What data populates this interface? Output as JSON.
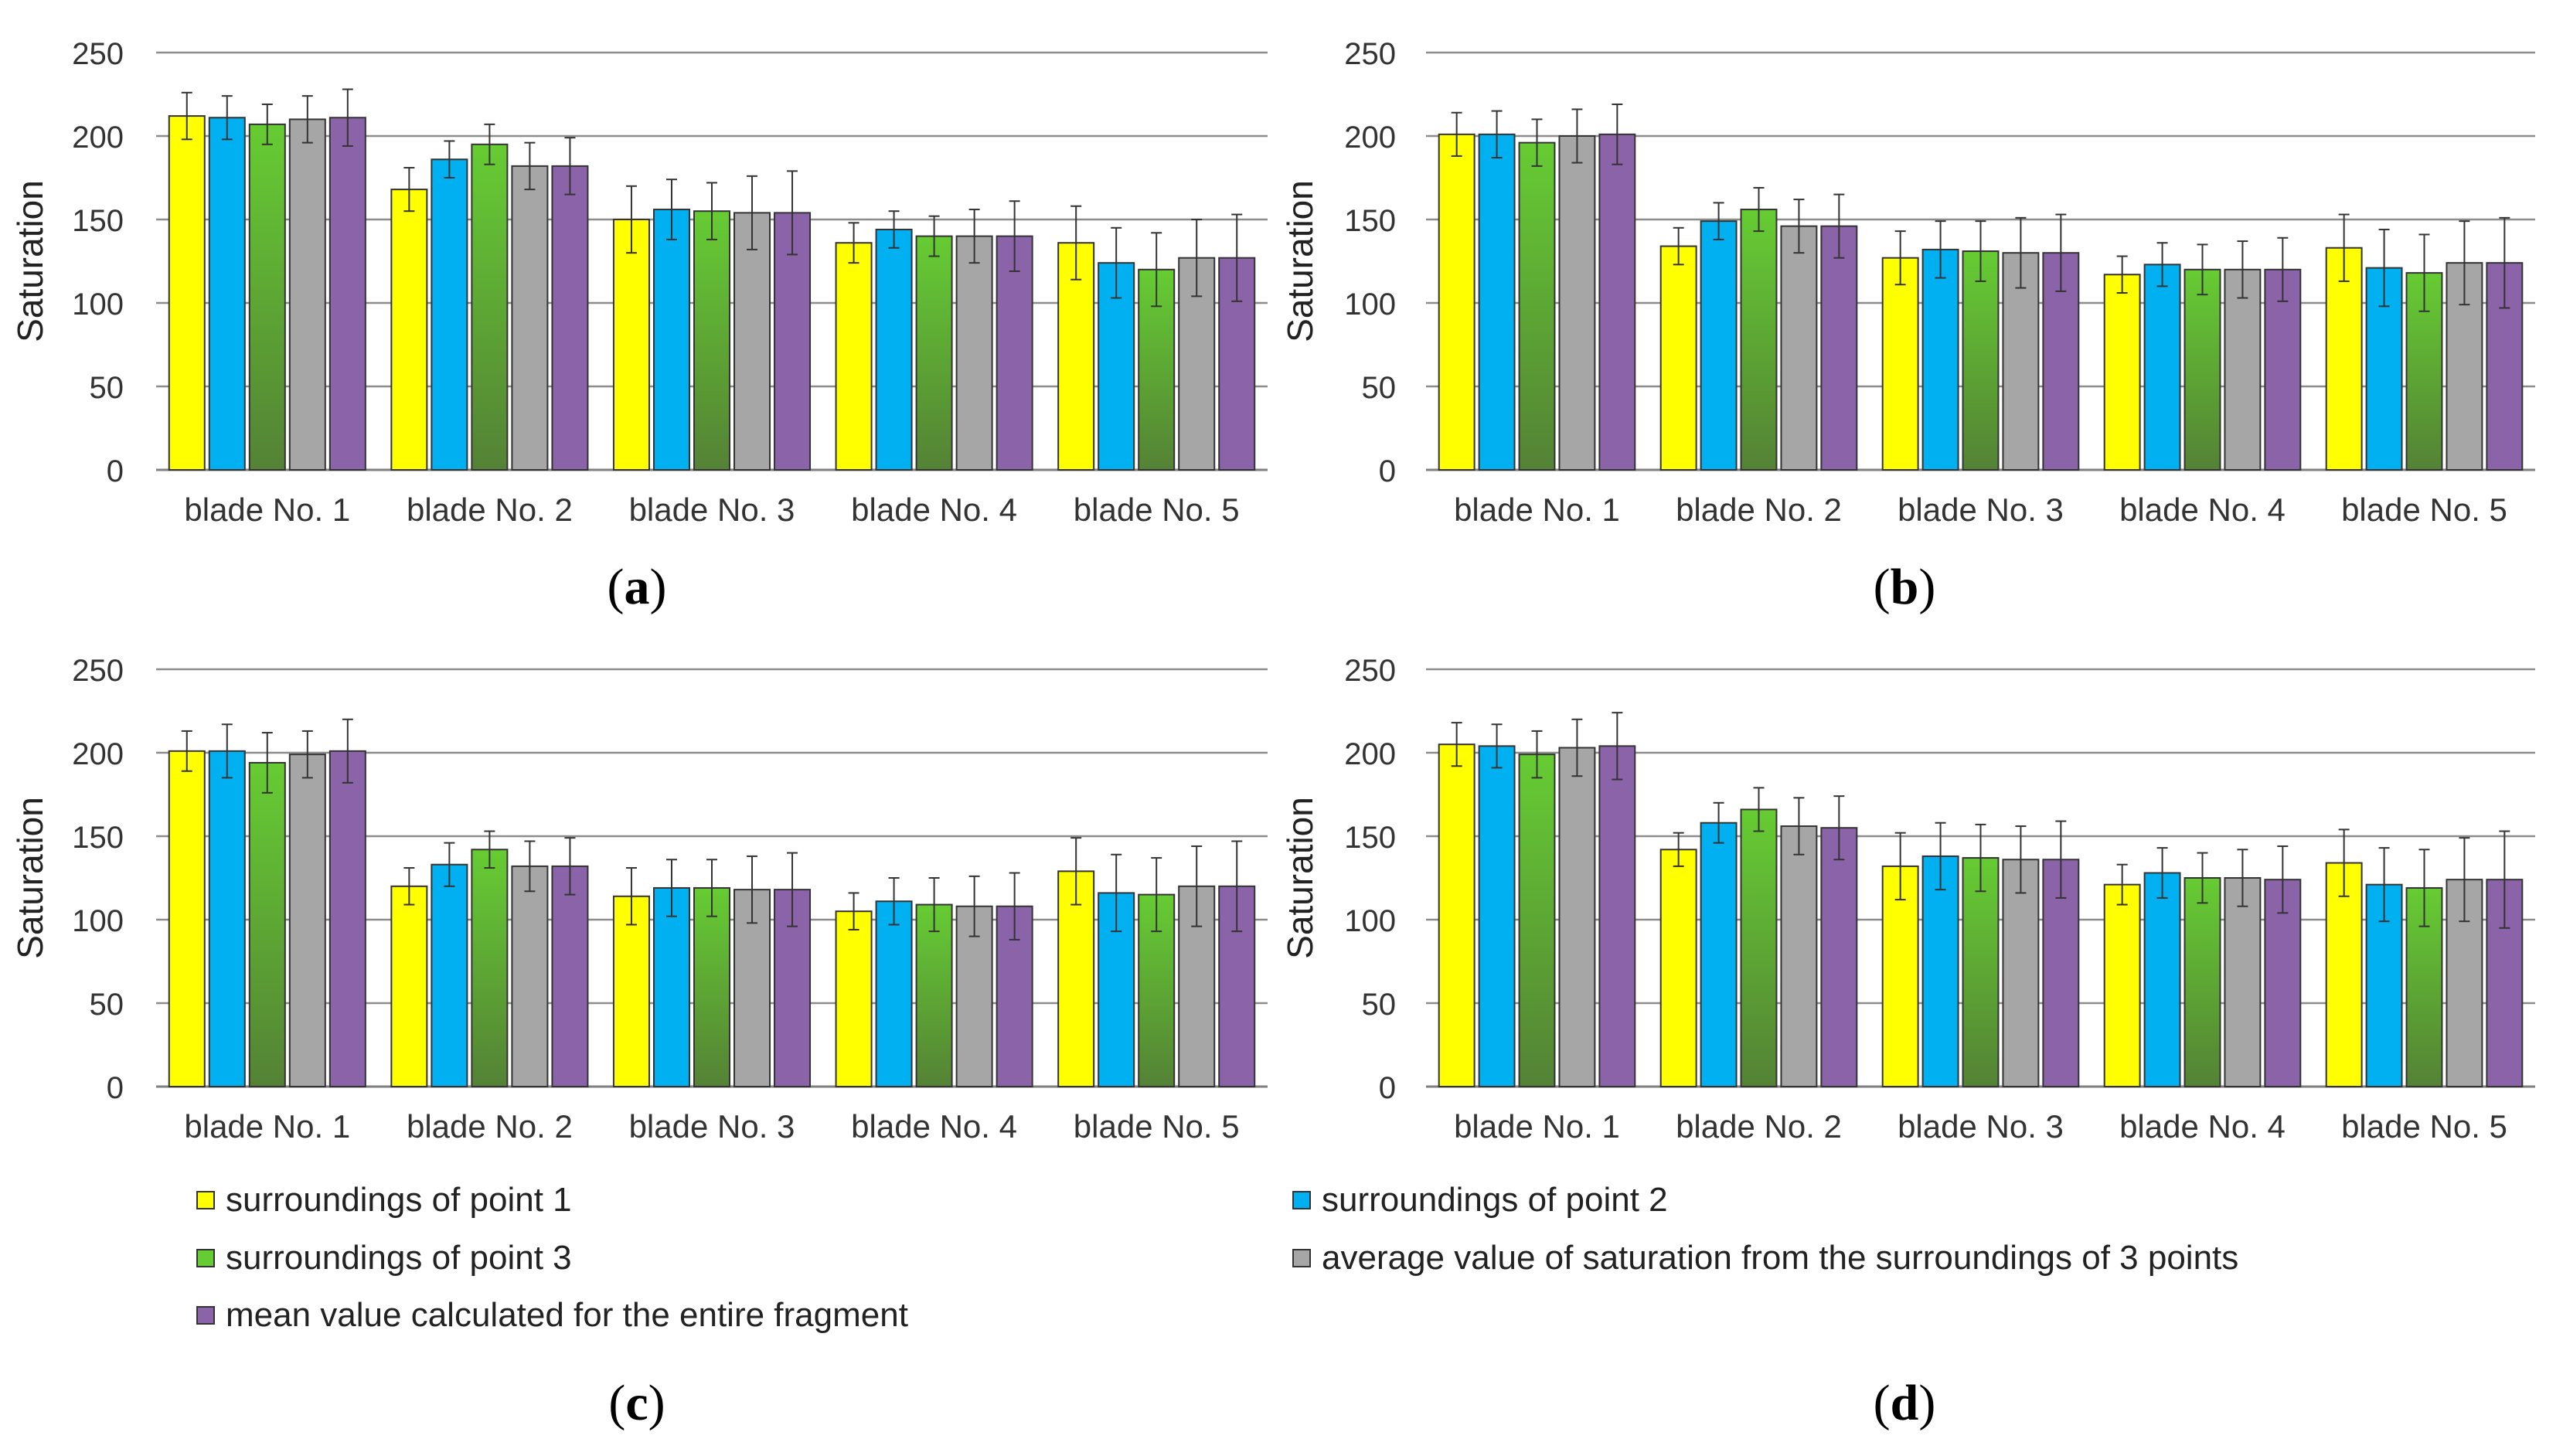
{
  "colors": {
    "point1": "#ffff00",
    "point2": "#00b0f0",
    "point3": "#66cc33",
    "average": "#a6a6a6",
    "mean": "#8a63a8",
    "point3_dark": "#548235"
  },
  "legend": {
    "point1": "surroundings of point 1",
    "point2": "surroundings of point 2",
    "point3": "surroundings of point 3",
    "average": "average value of saturation from the surroundings of 3 points",
    "mean": "mean value calculated for the entire fragment"
  },
  "panels": {
    "a": {
      "open": "(",
      "letter": "a",
      "close": ")"
    },
    "b": {
      "open": "(",
      "letter": "b",
      "close": ")"
    },
    "c": {
      "open": "(",
      "letter": "c",
      "close": ")"
    },
    "d": {
      "open": "(",
      "letter": "d",
      "close": ")"
    }
  },
  "chart_data": [
    {
      "id": "a",
      "type": "bar",
      "title": "",
      "xlabel": "",
      "ylabel": "Saturation",
      "ylim": [
        0,
        250
      ],
      "yticks": [
        0,
        50,
        100,
        150,
        200,
        250
      ],
      "grid": true,
      "legend": "bottom",
      "categories": [
        "blade No. 1",
        "blade No. 2",
        "blade No. 3",
        "blade No. 4",
        "blade No. 5"
      ],
      "series": [
        {
          "name": "surroundings of point 1",
          "values": [
            212,
            168,
            150,
            136,
            136
          ],
          "errors": [
            14,
            13,
            20,
            12,
            22
          ]
        },
        {
          "name": "surroundings of point 2",
          "values": [
            211,
            186,
            156,
            144,
            124
          ],
          "errors": [
            13,
            11,
            18,
            11,
            21
          ]
        },
        {
          "name": "surroundings of point 3",
          "values": [
            207,
            195,
            155,
            140,
            120
          ],
          "errors": [
            12,
            12,
            17,
            12,
            22
          ]
        },
        {
          "name": "average value of saturation from the surroundings of 3 points",
          "values": [
            210,
            182,
            154,
            140,
            127
          ],
          "errors": [
            14,
            14,
            22,
            16,
            23
          ]
        },
        {
          "name": "mean value calculated for the entire fragment",
          "values": [
            211,
            182,
            154,
            140,
            127
          ],
          "errors": [
            17,
            17,
            25,
            21,
            26
          ]
        }
      ]
    },
    {
      "id": "b",
      "type": "bar",
      "title": "",
      "xlabel": "",
      "ylabel": "Saturation",
      "ylim": [
        0,
        250
      ],
      "yticks": [
        0,
        50,
        100,
        150,
        200,
        250
      ],
      "grid": true,
      "legend": "bottom",
      "categories": [
        "blade No. 1",
        "blade No. 2",
        "blade No. 3",
        "blade No. 4",
        "blade No. 5"
      ],
      "series": [
        {
          "name": "surroundings of point 1",
          "values": [
            201,
            134,
            127,
            117,
            133
          ],
          "errors": [
            13,
            11,
            16,
            11,
            20
          ]
        },
        {
          "name": "surroundings of point 2",
          "values": [
            201,
            149,
            132,
            123,
            121
          ],
          "errors": [
            14,
            11,
            17,
            13,
            23
          ]
        },
        {
          "name": "surroundings of point 3",
          "values": [
            196,
            156,
            131,
            120,
            118
          ],
          "errors": [
            14,
            13,
            18,
            15,
            23
          ]
        },
        {
          "name": "average value of saturation from the surroundings of 3 points",
          "values": [
            200,
            146,
            130,
            120,
            124
          ],
          "errors": [
            16,
            16,
            21,
            17,
            25
          ]
        },
        {
          "name": "mean value calculated for the entire fragment",
          "values": [
            201,
            146,
            130,
            120,
            124
          ],
          "errors": [
            18,
            19,
            23,
            19,
            27
          ]
        }
      ]
    },
    {
      "id": "c",
      "type": "bar",
      "title": "",
      "xlabel": "",
      "ylabel": "Saturation",
      "ylim": [
        0,
        250
      ],
      "yticks": [
        0,
        50,
        100,
        150,
        200,
        250
      ],
      "grid": true,
      "legend": "bottom",
      "categories": [
        "blade No. 1",
        "blade No. 2",
        "blade No. 3",
        "blade No. 4",
        "blade No. 5"
      ],
      "series": [
        {
          "name": "surroundings of point 1",
          "values": [
            201,
            120,
            114,
            105,
            129
          ],
          "errors": [
            12,
            11,
            17,
            11,
            20
          ]
        },
        {
          "name": "surroundings of point 2",
          "values": [
            201,
            133,
            119,
            111,
            116
          ],
          "errors": [
            16,
            13,
            17,
            14,
            23
          ]
        },
        {
          "name": "surroundings of point 3",
          "values": [
            194,
            142,
            119,
            109,
            115
          ],
          "errors": [
            18,
            11,
            17,
            16,
            22
          ]
        },
        {
          "name": "average value of saturation from the surroundings of 3 points",
          "values": [
            199,
            132,
            118,
            108,
            120
          ],
          "errors": [
            14,
            15,
            20,
            18,
            24
          ]
        },
        {
          "name": "mean value calculated for the entire fragment",
          "values": [
            201,
            132,
            118,
            108,
            120
          ],
          "errors": [
            19,
            17,
            22,
            20,
            27
          ]
        }
      ]
    },
    {
      "id": "d",
      "type": "bar",
      "title": "",
      "xlabel": "",
      "ylabel": "Saturation",
      "ylim": [
        0,
        250
      ],
      "yticks": [
        0,
        50,
        100,
        150,
        200,
        250
      ],
      "grid": true,
      "legend": "bottom",
      "categories": [
        "blade No. 1",
        "blade No. 2",
        "blade No. 3",
        "blade No. 4",
        "blade No. 5"
      ],
      "series": [
        {
          "name": "surroundings of point 1",
          "values": [
            205,
            142,
            132,
            121,
            134
          ],
          "errors": [
            13,
            10,
            20,
            12,
            20
          ]
        },
        {
          "name": "surroundings of point 2",
          "values": [
            204,
            158,
            138,
            128,
            121
          ],
          "errors": [
            13,
            12,
            20,
            15,
            22
          ]
        },
        {
          "name": "surroundings of point 3",
          "values": [
            199,
            166,
            137,
            125,
            119
          ],
          "errors": [
            14,
            13,
            20,
            15,
            23
          ]
        },
        {
          "name": "average value of saturation from the surroundings of 3 points",
          "values": [
            203,
            156,
            136,
            125,
            124
          ],
          "errors": [
            17,
            17,
            20,
            17,
            25
          ]
        },
        {
          "name": "mean value calculated for the entire fragment",
          "values": [
            204,
            155,
            136,
            124,
            124
          ],
          "errors": [
            20,
            19,
            23,
            20,
            29
          ]
        }
      ]
    }
  ]
}
